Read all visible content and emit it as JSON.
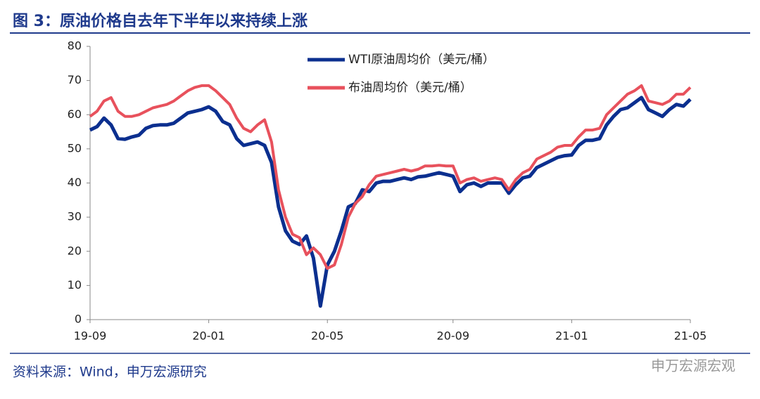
{
  "chart_data": {
    "type": "line",
    "title": "图 3：原油价格自去年下半年以来持续上涨",
    "source": "资料来源：Wind，申万宏源研究",
    "watermark": "申万宏源宏观",
    "categories": [
      "19-09",
      null,
      null,
      null,
      null,
      null,
      null,
      null,
      null,
      null,
      null,
      null,
      null,
      null,
      null,
      null,
      null,
      "20-01",
      null,
      null,
      null,
      null,
      null,
      null,
      null,
      null,
      null,
      null,
      null,
      null,
      null,
      null,
      null,
      null,
      "20-05",
      null,
      null,
      null,
      null,
      null,
      null,
      null,
      null,
      null,
      null,
      null,
      null,
      null,
      null,
      null,
      null,
      null,
      "20-09",
      null,
      null,
      null,
      null,
      null,
      null,
      null,
      null,
      null,
      null,
      null,
      null,
      null,
      null,
      null,
      null,
      "21-01",
      null,
      null,
      null,
      null,
      null,
      null,
      null,
      null,
      null,
      null,
      null,
      null,
      null,
      null,
      null,
      null,
      "21-05"
    ],
    "series": [
      {
        "name": "WTI原油周均价（美元/桶）",
        "color": "#0b2f8f",
        "width": 5,
        "values": [
          55.5,
          56.5,
          59,
          57,
          53,
          52.8,
          53.5,
          54,
          56,
          56.8,
          57,
          57,
          57.5,
          59,
          60.5,
          61,
          61.5,
          62.3,
          61,
          58,
          57,
          53,
          51,
          51.5,
          52,
          51,
          46,
          33,
          26,
          23,
          22,
          24.5,
          18,
          4,
          16,
          20,
          26,
          33,
          34,
          38,
          37.5,
          40,
          40.5,
          40.5,
          41,
          41.5,
          41,
          41.8,
          42,
          42.5,
          43,
          42.5,
          42,
          37.5,
          39.5,
          40,
          39,
          40,
          40,
          40,
          37,
          39.5,
          41.5,
          42,
          44.5,
          45.5,
          46.5,
          47.5,
          48,
          48.2,
          51,
          52.5,
          52.5,
          53,
          57,
          59.5,
          61.5,
          62,
          63.5,
          65,
          61.5,
          60.5,
          59.5,
          61.5,
          63,
          62.5,
          64.5
        ]
      },
      {
        "name": "布油周均价（美元/桶）",
        "color": "#e8515c",
        "width": 4,
        "values": [
          59.5,
          61,
          64,
          65,
          61,
          59.5,
          59.5,
          60,
          61,
          62,
          62.5,
          63,
          64,
          65.5,
          67,
          68,
          68.5,
          68.5,
          67,
          65,
          63,
          59,
          56,
          55,
          57,
          58.5,
          52,
          38,
          30,
          25,
          24,
          19,
          21,
          19,
          15,
          16,
          22,
          30,
          34,
          36,
          39.5,
          42,
          42.5,
          43,
          43.5,
          44,
          43.5,
          44,
          45,
          45,
          45.2,
          45,
          45,
          40,
          41,
          41.5,
          40.5,
          41,
          41.5,
          41,
          38,
          41,
          43,
          44,
          47,
          48,
          49,
          50.5,
          51,
          51,
          53.5,
          55.5,
          55.5,
          56,
          60,
          62,
          64,
          66,
          67,
          68.5,
          64,
          63.5,
          63,
          64,
          66,
          66,
          68
        ]
      }
    ],
    "ylim": [
      0,
      80
    ],
    "yticks": [
      0,
      10,
      20,
      30,
      40,
      50,
      60,
      70,
      80
    ]
  }
}
